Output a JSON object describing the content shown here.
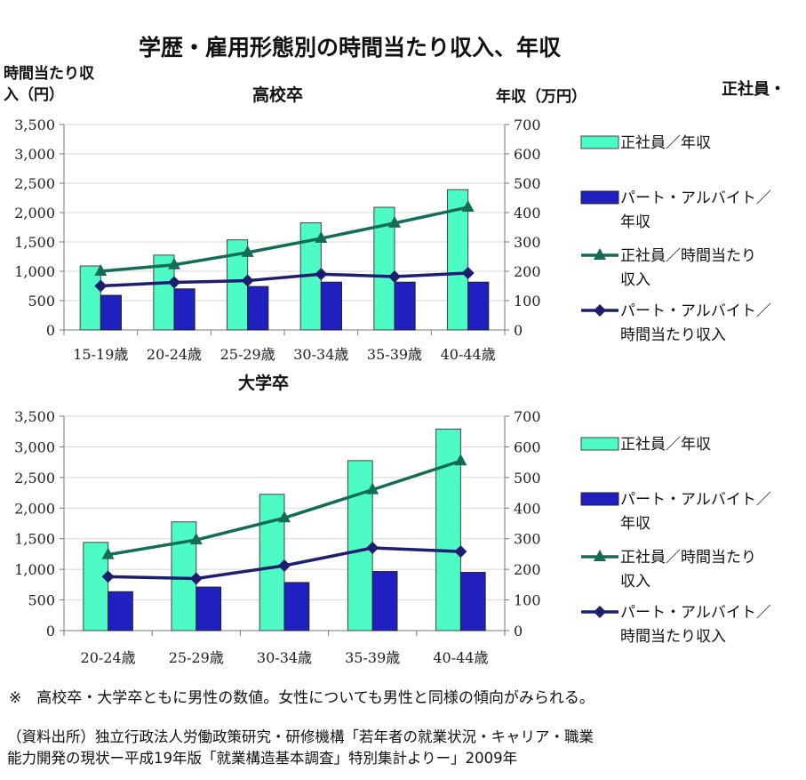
{
  "title": "学歴・雇用形態別の時間当たり収入、年収",
  "left_axis_label": [
    "時間当たり収",
    "入（円）"
  ],
  "right_axis_label": "年収（万円）",
  "cut_off_label": "正社員・",
  "legend": [
    {
      "line1": "正社員／年収",
      "line2": ""
    },
    {
      "line1": "パート・アルバイト／",
      "line2": "年収"
    },
    {
      "line1": "正社員／時間当たり",
      "line2": "収入"
    },
    {
      "line1": "パート・アルバイト／",
      "line2": "時間当たり収入"
    }
  ],
  "colors": {
    "seishain_bar": "#4dfcc4",
    "part_bar": "#2020c0",
    "seishain_line": "#146c54",
    "part_line": "#1e1e6e",
    "grid": "#d8d8d8"
  },
  "chart_data": [
    {
      "type": "bar",
      "title": "高校卒",
      "categories": [
        "15-19歳",
        "20-24歳",
        "25-29歳",
        "30-34歳",
        "35-39歳",
        "40-44歳"
      ],
      "y_left_ticks": [
        "0",
        "500",
        "1,000",
        "1,500",
        "2,000",
        "2,500",
        "3,000",
        "3,500"
      ],
      "y_right_ticks": [
        "0",
        "100",
        "200",
        "300",
        "400",
        "500",
        "600",
        "700"
      ],
      "ylim_left": [
        0,
        3500
      ],
      "ylim_right": [
        0,
        700
      ],
      "grid": true,
      "legend_position": "right",
      "series": [
        {
          "name": "正社員／年収",
          "kind": "bar",
          "axis": "right",
          "values": [
            218,
            255,
            307,
            365,
            418,
            478
          ]
        },
        {
          "name": "パート・アルバイト／年収",
          "kind": "bar",
          "axis": "right",
          "values": [
            118,
            140,
            148,
            163,
            163,
            163
          ]
        },
        {
          "name": "正社員／時間当たり収入",
          "kind": "line",
          "marker": "triangle",
          "axis": "left",
          "values": [
            1000,
            1110,
            1320,
            1560,
            1820,
            2090
          ]
        },
        {
          "name": "パート・アルバイト／時間当たり収入",
          "kind": "line",
          "marker": "diamond",
          "axis": "left",
          "values": [
            750,
            810,
            840,
            950,
            910,
            970
          ]
        }
      ]
    },
    {
      "type": "bar",
      "title": "大学卒",
      "categories": [
        "20-24歳",
        "25-29歳",
        "30-34歳",
        "35-39歳",
        "40-44歳"
      ],
      "y_left_ticks": [
        "0",
        "500",
        "1,000",
        "1,500",
        "2,000",
        "2,500",
        "3,000",
        "3,500"
      ],
      "y_right_ticks": [
        "0",
        "100",
        "200",
        "300",
        "400",
        "500",
        "600",
        "700"
      ],
      "ylim_left": [
        0,
        3500
      ],
      "ylim_right": [
        0,
        700
      ],
      "grid": true,
      "legend_position": "right",
      "series": [
        {
          "name": "正社員／年収",
          "kind": "bar",
          "axis": "right",
          "values": [
            288,
            355,
            445,
            555,
            658
          ]
        },
        {
          "name": "パート・アルバイト／年収",
          "kind": "bar",
          "axis": "right",
          "values": [
            127,
            142,
            157,
            193,
            190
          ]
        },
        {
          "name": "正社員／時間当たり収入",
          "kind": "line",
          "marker": "triangle",
          "axis": "left",
          "values": [
            1240,
            1480,
            1840,
            2300,
            2770
          ]
        },
        {
          "name": "パート・アルバイト／時間当たり収入",
          "kind": "line",
          "marker": "diamond",
          "axis": "left",
          "values": [
            880,
            850,
            1060,
            1350,
            1290
          ]
        }
      ]
    }
  ],
  "footnote": "※　高校卒・大学卒ともに男性の数値。女性についても男性と同様の傾向がみられる。",
  "source": [
    "（資料出所）独立行政法人労働政策研究・研修機構「若年者の就業状況・キャリア・職業",
    "能力開発の現状ー平成19年版「就業構造基本調査」特別集計よりー」2009年"
  ]
}
